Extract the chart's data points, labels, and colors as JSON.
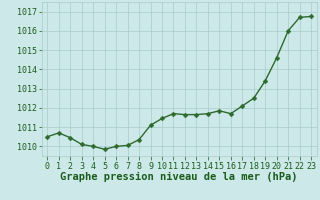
{
  "x": [
    0,
    1,
    2,
    3,
    4,
    5,
    6,
    7,
    8,
    9,
    10,
    11,
    12,
    13,
    14,
    15,
    16,
    17,
    18,
    19,
    20,
    21,
    22,
    23
  ],
  "y": [
    1010.5,
    1010.7,
    1010.45,
    1010.1,
    1010.0,
    1009.85,
    1010.0,
    1010.05,
    1010.35,
    1011.1,
    1011.45,
    1011.7,
    1011.65,
    1011.65,
    1011.7,
    1011.85,
    1011.7,
    1012.1,
    1012.5,
    1013.4,
    1014.6,
    1016.0,
    1016.7,
    1016.75
  ],
  "line_color": "#2d6a2d",
  "marker": "D",
  "marker_size": 2.5,
  "line_width": 1.0,
  "bg_color": "#cce8e8",
  "grid_color": "#aacccc",
  "xlabel": "Graphe pression niveau de la mer (hPa)",
  "xlabel_color": "#1a5c1a",
  "xlabel_fontsize": 7.5,
  "tick_color": "#1a5c1a",
  "tick_fontsize": 6.0,
  "ylim": [
    1009.5,
    1017.5
  ],
  "yticks": [
    1010,
    1011,
    1012,
    1013,
    1014,
    1015,
    1016,
    1017
  ],
  "xlim": [
    -0.5,
    23.5
  ],
  "xticks": [
    0,
    1,
    2,
    3,
    4,
    5,
    6,
    7,
    8,
    9,
    10,
    11,
    12,
    13,
    14,
    15,
    16,
    17,
    18,
    19,
    20,
    21,
    22,
    23
  ]
}
